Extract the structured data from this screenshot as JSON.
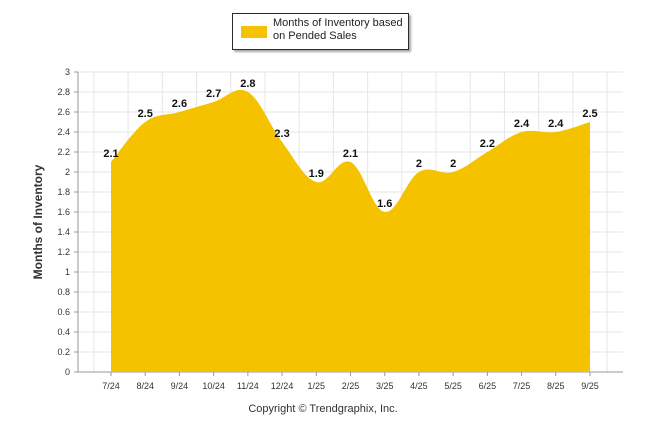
{
  "chart_data": {
    "type": "area",
    "title": "",
    "xlabel": "",
    "ylabel": "Months of Inventory",
    "ylim": [
      0,
      3
    ],
    "ytick_step": 0.2,
    "yticks": [
      "0",
      "0.2",
      "0.4",
      "0.6",
      "0.8",
      "1",
      "1.2",
      "1.4",
      "1.6",
      "1.8",
      "2",
      "2.2",
      "2.4",
      "2.6",
      "2.8",
      "3"
    ],
    "categories": [
      "7/24",
      "8/24",
      "9/24",
      "10/24",
      "11/24",
      "12/24",
      "1/25",
      "2/25",
      "3/25",
      "4/25",
      "5/25",
      "6/25",
      "7/25",
      "8/25",
      "9/25"
    ],
    "series": [
      {
        "name": "Months of Inventory based on Pended Sales",
        "values": [
          2.1,
          2.5,
          2.6,
          2.7,
          2.8,
          2.3,
          1.9,
          2.1,
          1.6,
          2.0,
          2.0,
          2.2,
          2.4,
          2.4,
          2.5
        ],
        "data_labels": [
          "2.1",
          "2.5",
          "2.6",
          "2.7",
          "2.8",
          "2.3",
          "1.9",
          "2.1",
          "1.6",
          "2",
          "2",
          "2.2",
          "2.4",
          "2.4",
          "2.5"
        ]
      }
    ],
    "legend": {
      "label": "Months of Inventory based on Pended Sales",
      "placement": "top-center"
    },
    "grid": true,
    "colors": {
      "fill": "#f5c200",
      "grid": "#e6e6e6",
      "axis": "#999999"
    }
  },
  "footer": {
    "copyright": "Copyright © Trendgraphix, Inc."
  }
}
